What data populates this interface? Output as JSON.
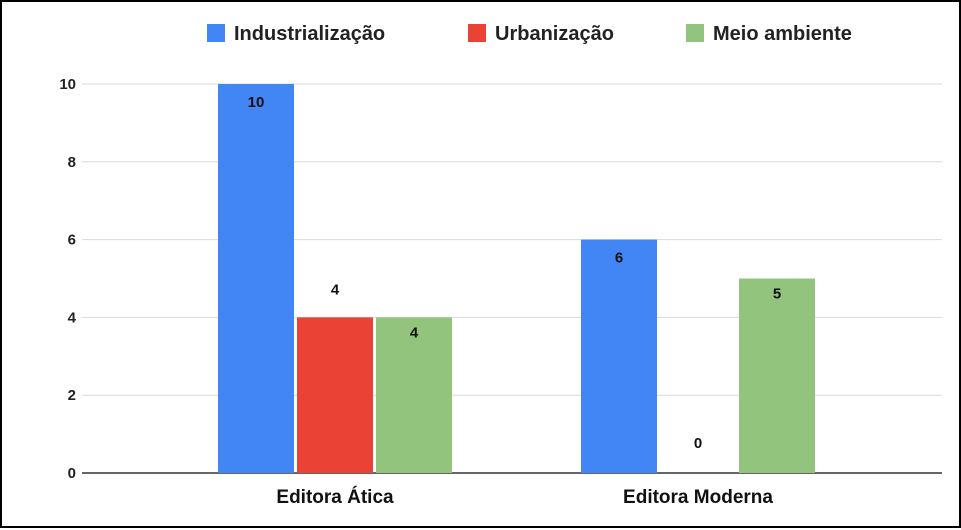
{
  "chart_data": {
    "type": "bar",
    "title": "",
    "xlabel": "",
    "ylabel": "",
    "categories": [
      "Editora Ática",
      "Editora Moderna"
    ],
    "series": [
      {
        "name": "Industrialização",
        "color": "#4285f4",
        "values": [
          10,
          6
        ]
      },
      {
        "name": "Urbanização",
        "color": "#ea4335",
        "values": [
          4,
          0
        ]
      },
      {
        "name": "Meio ambiente",
        "color": "#93c47d",
        "values": [
          4,
          5
        ]
      }
    ],
    "ylim": [
      0,
      10
    ],
    "yticks": [
      0,
      2,
      4,
      6,
      8,
      10
    ],
    "grid": true,
    "legend_position": "top",
    "data_labels": true
  }
}
